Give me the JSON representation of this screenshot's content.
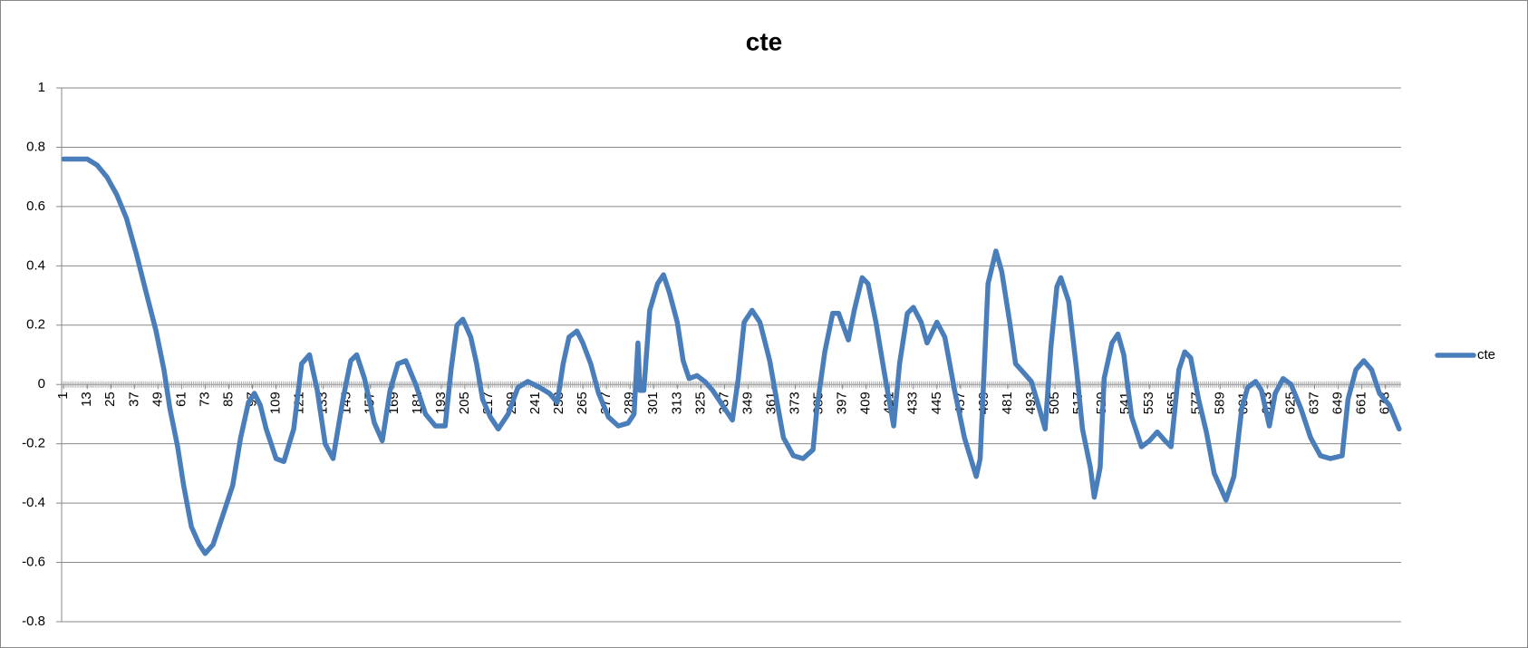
{
  "chart_data": {
    "type": "line",
    "title": "cte",
    "x": [
      1,
      13,
      18,
      23,
      28,
      33,
      38,
      43,
      48,
      52,
      55,
      59,
      62,
      66,
      70,
      73,
      77,
      82,
      87,
      91,
      95,
      98,
      101,
      104,
      109,
      113,
      118,
      122,
      126,
      130,
      134,
      138,
      143,
      147,
      150,
      154,
      159,
      163,
      167,
      171,
      175,
      180,
      185,
      190,
      195,
      198,
      201,
      204,
      208,
      211,
      214,
      218,
      222,
      227,
      232,
      237,
      243,
      248,
      252,
      255,
      258,
      262,
      265,
      269,
      273,
      278,
      283,
      288,
      291,
      293,
      294,
      296,
      299,
      303,
      306,
      309,
      313,
      316,
      319,
      323,
      327,
      331,
      336,
      341,
      344,
      347,
      351,
      355,
      360,
      364,
      367,
      372,
      377,
      382,
      384,
      388,
      392,
      395,
      400,
      403,
      407,
      410,
      414,
      418,
      423,
      426,
      430,
      433,
      437,
      440,
      445,
      449,
      454,
      459,
      465,
      467,
      471,
      475,
      478,
      482,
      485,
      489,
      493,
      497,
      500,
      503,
      506,
      508,
      512,
      516,
      519,
      523,
      525,
      528,
      530,
      534,
      537,
      540,
      544,
      549,
      553,
      557,
      561,
      564,
      568,
      571,
      574,
      578,
      582,
      586,
      590,
      592,
      596,
      600,
      603,
      607,
      610,
      614,
      617,
      621,
      625,
      630,
      635,
      640,
      645,
      651,
      654,
      658,
      662,
      666,
      670,
      675,
      680
    ],
    "series": [
      {
        "name": "cte",
        "color": "#4a7ebb",
        "values": [
          0.76,
          0.76,
          0.74,
          0.7,
          0.64,
          0.56,
          0.44,
          0.31,
          0.18,
          0.05,
          -0.08,
          -0.21,
          -0.34,
          -0.48,
          -0.54,
          -0.57,
          -0.54,
          -0.44,
          -0.34,
          -0.18,
          -0.06,
          -0.03,
          -0.07,
          -0.15,
          -0.25,
          -0.26,
          -0.15,
          0.07,
          0.1,
          -0.02,
          -0.2,
          -0.25,
          -0.05,
          0.08,
          0.1,
          0.02,
          -0.13,
          -0.19,
          -0.02,
          0.07,
          0.08,
          0.0,
          -0.1,
          -0.14,
          -0.14,
          0.05,
          0.2,
          0.22,
          0.16,
          0.07,
          -0.05,
          -0.11,
          -0.15,
          -0.1,
          -0.01,
          0.01,
          -0.01,
          -0.03,
          -0.06,
          0.07,
          0.16,
          0.18,
          0.14,
          0.07,
          -0.03,
          -0.11,
          -0.14,
          -0.13,
          -0.1,
          0.14,
          -0.02,
          -0.02,
          0.25,
          0.34,
          0.37,
          0.31,
          0.21,
          0.08,
          0.02,
          0.03,
          0.01,
          -0.02,
          -0.07,
          -0.12,
          0.02,
          0.21,
          0.25,
          0.21,
          0.08,
          -0.07,
          -0.18,
          -0.24,
          -0.25,
          -0.22,
          -0.08,
          0.11,
          0.24,
          0.24,
          0.15,
          0.25,
          0.36,
          0.34,
          0.21,
          0.05,
          -0.14,
          0.07,
          0.24,
          0.26,
          0.21,
          0.14,
          0.21,
          0.16,
          -0.02,
          -0.18,
          -0.31,
          -0.25,
          0.34,
          0.45,
          0.38,
          0.21,
          0.07,
          0.04,
          0.01,
          -0.08,
          -0.15,
          0.13,
          0.33,
          0.36,
          0.28,
          0.05,
          -0.15,
          -0.28,
          -0.38,
          -0.28,
          0.02,
          0.14,
          0.17,
          0.1,
          -0.11,
          -0.21,
          -0.19,
          -0.16,
          -0.19,
          -0.21,
          0.05,
          0.11,
          0.09,
          -0.05,
          -0.16,
          -0.3,
          -0.36,
          -0.39,
          -0.31,
          -0.08,
          -0.01,
          0.01,
          -0.02,
          -0.14,
          -0.03,
          0.02,
          0.0,
          -0.08,
          -0.18,
          -0.24,
          -0.25,
          -0.24,
          -0.05,
          0.05,
          0.08,
          0.05,
          -0.03,
          -0.07,
          -0.15
        ]
      }
    ],
    "xlim": [
      0,
      681
    ],
    "xticks": [
      1,
      13,
      25,
      37,
      49,
      61,
      73,
      85,
      97,
      109,
      121,
      133,
      145,
      157,
      169,
      181,
      193,
      205,
      217,
      229,
      241,
      253,
      265,
      277,
      289,
      301,
      313,
      325,
      337,
      349,
      361,
      373,
      385,
      397,
      409,
      421,
      433,
      445,
      457,
      469,
      481,
      493,
      505,
      517,
      529,
      541,
      553,
      565,
      577,
      589,
      601,
      613,
      625,
      637,
      649,
      661,
      673
    ],
    "ylim": [
      -0.8,
      1
    ],
    "yticks": [
      -0.8,
      -0.6,
      -0.4,
      -0.2,
      0,
      0.2,
      0.4,
      0.6,
      0.8,
      1
    ],
    "grid": true,
    "legend": "right"
  }
}
